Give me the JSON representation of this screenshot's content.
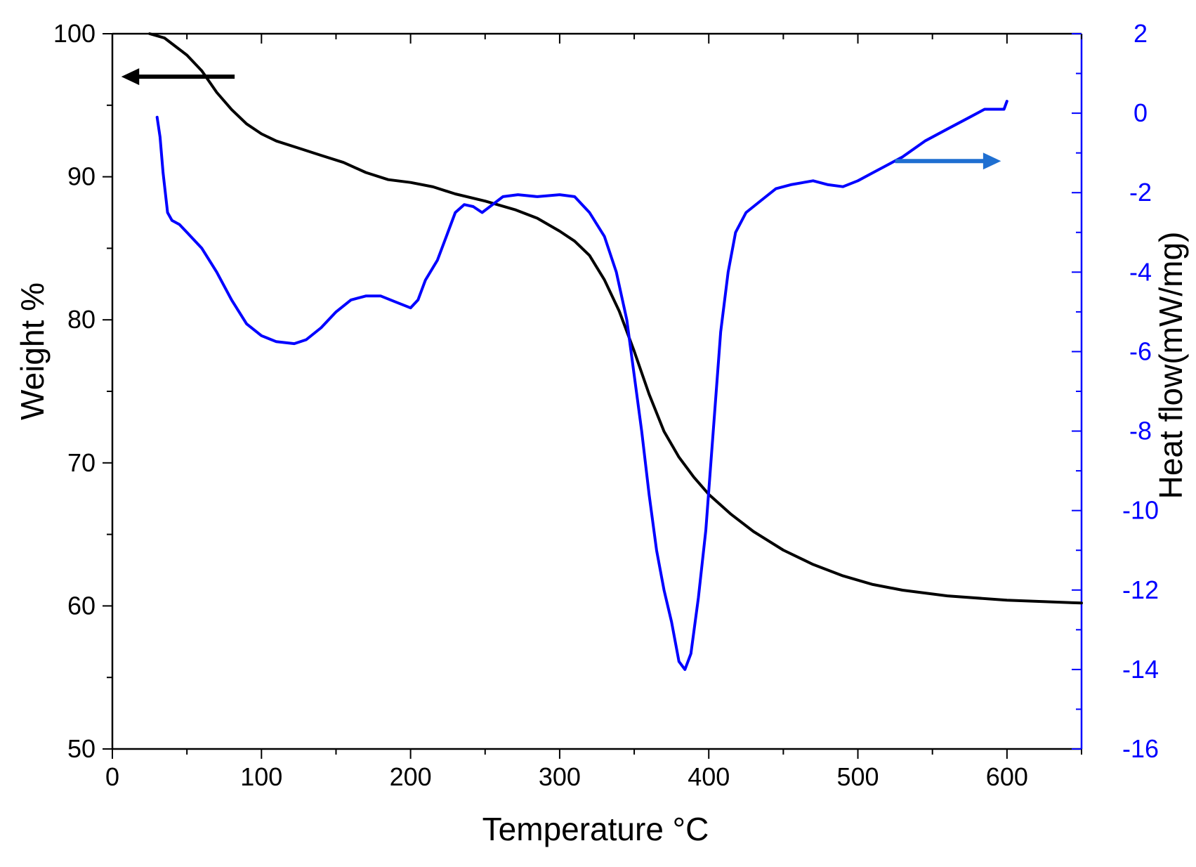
{
  "chart_data": {
    "type": "line",
    "title": "",
    "xlabel": "Temperature °C",
    "xlim": [
      0,
      650
    ],
    "x_ticks": [
      0,
      100,
      200,
      300,
      400,
      500,
      600
    ],
    "y_left": {
      "label": "Weight %",
      "lim": [
        50,
        100
      ],
      "ticks": [
        50,
        60,
        70,
        80,
        90,
        100
      ],
      "color": "#000000"
    },
    "y_right": {
      "label": "Heat flow(mW/mg)",
      "lim": [
        -16,
        2
      ],
      "ticks": [
        -16,
        -14,
        -12,
        -10,
        -8,
        -6,
        -4,
        -2,
        0,
        2
      ],
      "color": "#0000ff"
    },
    "series": [
      {
        "name": "Weight %",
        "axis": "left",
        "color": "#000000",
        "points": [
          [
            25,
            100
          ],
          [
            35,
            99.7
          ],
          [
            50,
            98.5
          ],
          [
            60,
            97.4
          ],
          [
            70,
            95.9
          ],
          [
            80,
            94.7
          ],
          [
            90,
            93.7
          ],
          [
            100,
            93.0
          ],
          [
            110,
            92.5
          ],
          [
            125,
            92.0
          ],
          [
            140,
            91.5
          ],
          [
            155,
            91.0
          ],
          [
            170,
            90.3
          ],
          [
            185,
            89.8
          ],
          [
            200,
            89.6
          ],
          [
            215,
            89.3
          ],
          [
            230,
            88.8
          ],
          [
            250,
            88.3
          ],
          [
            270,
            87.7
          ],
          [
            285,
            87.1
          ],
          [
            300,
            86.2
          ],
          [
            310,
            85.5
          ],
          [
            320,
            84.5
          ],
          [
            330,
            82.8
          ],
          [
            340,
            80.6
          ],
          [
            350,
            77.8
          ],
          [
            360,
            74.8
          ],
          [
            370,
            72.2
          ],
          [
            380,
            70.4
          ],
          [
            390,
            69.0
          ],
          [
            400,
            67.8
          ],
          [
            415,
            66.4
          ],
          [
            430,
            65.2
          ],
          [
            450,
            63.9
          ],
          [
            470,
            62.9
          ],
          [
            490,
            62.1
          ],
          [
            510,
            61.5
          ],
          [
            530,
            61.1
          ],
          [
            560,
            60.7
          ],
          [
            600,
            60.4
          ],
          [
            650,
            60.2
          ]
        ]
      },
      {
        "name": "Heat flow",
        "axis": "right",
        "color": "#0000ff",
        "points": [
          [
            30,
            -0.1
          ],
          [
            32,
            -0.6
          ],
          [
            34,
            -1.5
          ],
          [
            37,
            -2.5
          ],
          [
            40,
            -2.7
          ],
          [
            45,
            -2.8
          ],
          [
            50,
            -3.0
          ],
          [
            60,
            -3.4
          ],
          [
            70,
            -4.0
          ],
          [
            80,
            -4.7
          ],
          [
            90,
            -5.3
          ],
          [
            100,
            -5.6
          ],
          [
            110,
            -5.75
          ],
          [
            122,
            -5.8
          ],
          [
            130,
            -5.7
          ],
          [
            140,
            -5.4
          ],
          [
            150,
            -5.0
          ],
          [
            160,
            -4.7
          ],
          [
            170,
            -4.6
          ],
          [
            180,
            -4.6
          ],
          [
            190,
            -4.75
          ],
          [
            200,
            -4.9
          ],
          [
            205,
            -4.7
          ],
          [
            210,
            -4.2
          ],
          [
            218,
            -3.7
          ],
          [
            224,
            -3.1
          ],
          [
            230,
            -2.5
          ],
          [
            236,
            -2.3
          ],
          [
            242,
            -2.35
          ],
          [
            248,
            -2.5
          ],
          [
            255,
            -2.3
          ],
          [
            262,
            -2.1
          ],
          [
            272,
            -2.05
          ],
          [
            285,
            -2.1
          ],
          [
            300,
            -2.05
          ],
          [
            310,
            -2.1
          ],
          [
            320,
            -2.5
          ],
          [
            330,
            -3.1
          ],
          [
            338,
            -4.0
          ],
          [
            345,
            -5.2
          ],
          [
            350,
            -6.6
          ],
          [
            355,
            -8.0
          ],
          [
            360,
            -9.6
          ],
          [
            365,
            -11.0
          ],
          [
            370,
            -12.0
          ],
          [
            375,
            -12.8
          ],
          [
            380,
            -13.8
          ],
          [
            384,
            -14.0
          ],
          [
            388,
            -13.6
          ],
          [
            393,
            -12.2
          ],
          [
            398,
            -10.5
          ],
          [
            403,
            -8.0
          ],
          [
            408,
            -5.5
          ],
          [
            413,
            -4.0
          ],
          [
            418,
            -3.0
          ],
          [
            425,
            -2.5
          ],
          [
            435,
            -2.2
          ],
          [
            445,
            -1.9
          ],
          [
            455,
            -1.8
          ],
          [
            470,
            -1.7
          ],
          [
            480,
            -1.8
          ],
          [
            490,
            -1.85
          ],
          [
            500,
            -1.7
          ],
          [
            510,
            -1.5
          ],
          [
            520,
            -1.3
          ],
          [
            530,
            -1.1
          ],
          [
            545,
            -0.7
          ],
          [
            560,
            -0.4
          ],
          [
            575,
            -0.1
          ],
          [
            585,
            0.1
          ],
          [
            592,
            0.1
          ],
          [
            598,
            0.1
          ],
          [
            600,
            0.3
          ]
        ]
      }
    ],
    "annotations": [
      {
        "name": "arrow-left",
        "label": "points to Weight % axis",
        "color": "#000000"
      },
      {
        "name": "arrow-right",
        "label": "points to Heat flow axis",
        "color": "#1f6fd1"
      }
    ]
  }
}
